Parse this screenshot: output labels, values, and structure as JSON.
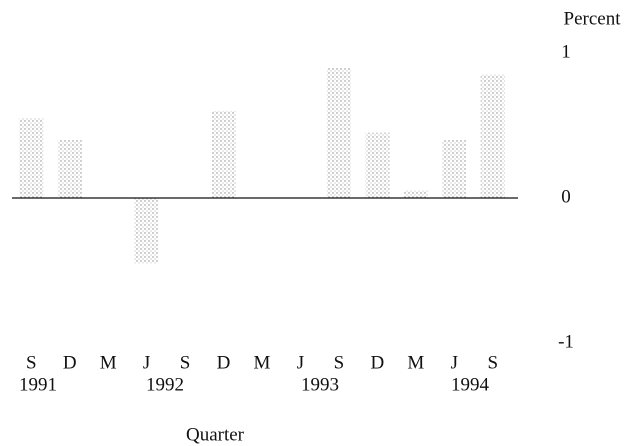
{
  "chart_data": {
    "type": "bar",
    "y_axis_label": "Percent",
    "x_axis_label": "Quarter",
    "categories": [
      "S",
      "D",
      "M",
      "J",
      "S",
      "D",
      "M",
      "J",
      "S",
      "D",
      "M",
      "J",
      "S"
    ],
    "year_labels": [
      "1991",
      "1992",
      "1993",
      "1994"
    ],
    "values": [
      0.55,
      0.4,
      0,
      -0.45,
      0,
      0.6,
      0,
      0,
      0.9,
      0.45,
      0.05,
      0.4,
      0.85
    ],
    "color": "#888888",
    "ylim": [
      -1,
      1
    ],
    "yticks": [
      1,
      0,
      -1
    ]
  }
}
